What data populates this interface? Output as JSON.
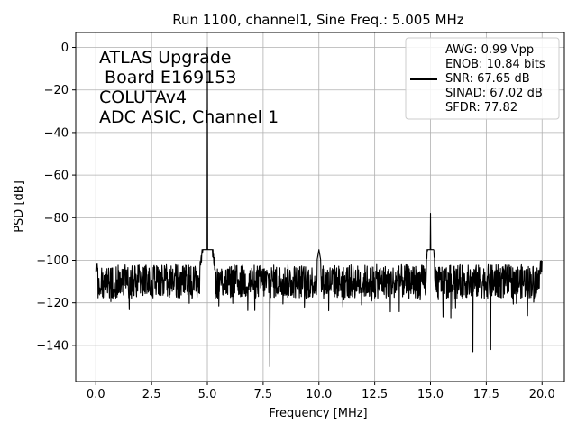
{
  "chart_data": {
    "type": "line",
    "title": "Run 1100, channel1, Sine Freq.: 5.005 MHz",
    "xlabel": "Frequency [MHz]",
    "ylabel": "PSD [dB]",
    "xlim": [
      -0.9,
      21.0
    ],
    "ylim": [
      -157,
      7
    ],
    "xticks": [
      0.0,
      2.5,
      5.0,
      7.5,
      10.0,
      12.5,
      15.0,
      17.5,
      20.0
    ],
    "xtick_labels": [
      "0.0",
      "2.5",
      "5.0",
      "7.5",
      "10.0",
      "12.5",
      "15.0",
      "17.5",
      "20.0"
    ],
    "yticks": [
      0,
      -20,
      -40,
      -60,
      -80,
      -100,
      -120,
      -140
    ],
    "ytick_labels": [
      "0",
      "−20",
      "−40",
      "−60",
      "−80",
      "−100",
      "−120",
      "−140"
    ],
    "grid": true,
    "line_color": "#000000",
    "annotation_lines": [
      "ATLAS Upgrade",
      " Board E169153",
      "COLUTAv4",
      "ADC ASIC, Channel 1"
    ],
    "legend": {
      "placement": "upper right",
      "lines": [
        "AWG: 0.99 Vpp",
        "ENOB: 10.84 bits",
        "SNR: 67.65 dB",
        "SINAD: 67.02 dB",
        "SFDR: 77.82"
      ]
    },
    "noise_floor": {
      "x_range": [
        0.0,
        20.0
      ],
      "mean_db": -110,
      "min_db": -124,
      "max_db": -96
    },
    "features": [
      {
        "name": "fundamental",
        "x": 5.005,
        "y": 0
      },
      {
        "name": "fundamental-skirt",
        "x": 5.0,
        "y": -80
      },
      {
        "name": "harmonic-3rd",
        "x": 15.0,
        "y": -78
      },
      {
        "name": "spur-10mhz",
        "x": 10.0,
        "y": -95
      },
      {
        "name": "dip-7.8mhz",
        "x": 7.8,
        "y": -150
      },
      {
        "name": "dip-16.9mhz",
        "x": 16.9,
        "y": -143
      },
      {
        "name": "dip-17.7mhz",
        "x": 17.7,
        "y": -142
      }
    ]
  }
}
